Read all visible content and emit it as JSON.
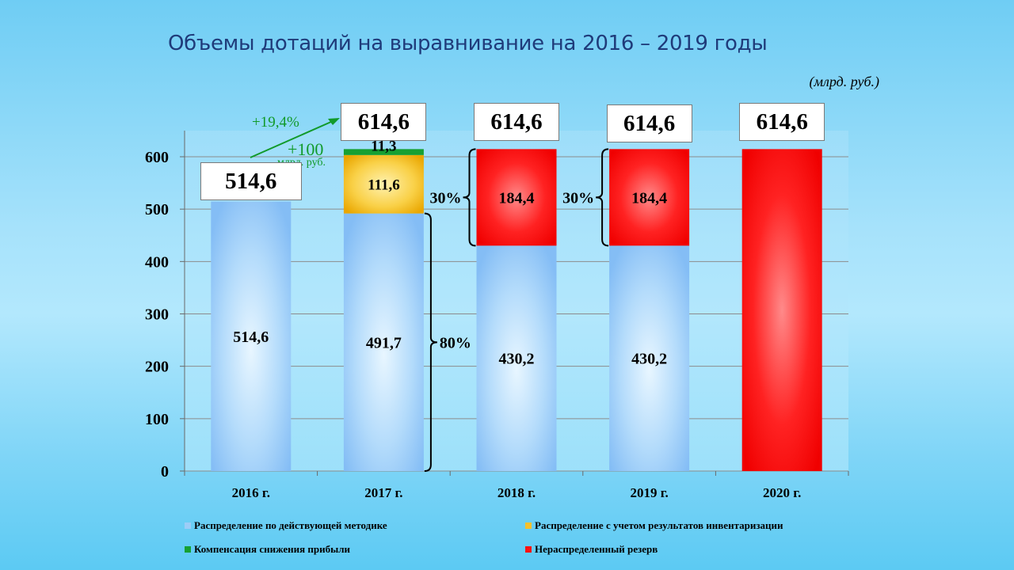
{
  "title": "Объемы дотаций на выравнивание на 2016 – 2019 годы",
  "unit_note": "(млрд. руб.)",
  "colors": {
    "blue": "#9ccdf7",
    "yellow": "#f5c12e",
    "green": "#16a032",
    "red": "#ff1010",
    "annotation_green": "#119a2a"
  },
  "chart_data": {
    "type": "bar",
    "stacked": true,
    "categories": [
      "2016 г.",
      "2017 г.",
      "2018 г.",
      "2019 г.",
      "2020 г."
    ],
    "series": [
      {
        "name": "Распределение по действующей методике",
        "values": [
          514.6,
          491.7,
          430.2,
          430.2,
          0
        ],
        "labels": [
          "514,6",
          "491,7",
          "430,2",
          "430,2",
          ""
        ]
      },
      {
        "name": "Распределение с учетом результатов инвентаризации",
        "values": [
          0,
          111.6,
          0,
          0,
          0
        ],
        "labels": [
          "",
          "111,6",
          "",
          "",
          ""
        ]
      },
      {
        "name": "Компенсация снижения прибыли",
        "values": [
          0,
          11.3,
          0,
          0,
          0
        ],
        "labels": [
          "",
          "11,3",
          "",
          "",
          ""
        ]
      },
      {
        "name": "Нераспределенный резерв",
        "values": [
          0,
          0,
          184.4,
          184.4,
          614.6
        ],
        "labels": [
          "",
          "",
          "184,4",
          "184,4",
          ""
        ]
      }
    ],
    "totals": [
      "514,6",
      "614,6",
      "614,6",
      "614,6",
      "614,6"
    ],
    "yticks": [
      0,
      100,
      200,
      300,
      400,
      500,
      600
    ],
    "ylim": [
      0,
      650
    ],
    "grid": true,
    "legend_position": "bottom",
    "annotations": {
      "growth_percent": "+19,4%",
      "growth_amount": "+100",
      "growth_unit": "млрд. руб.",
      "share_80": "80%",
      "share_30_2018": "30%",
      "share_30_2019": "30%"
    }
  }
}
